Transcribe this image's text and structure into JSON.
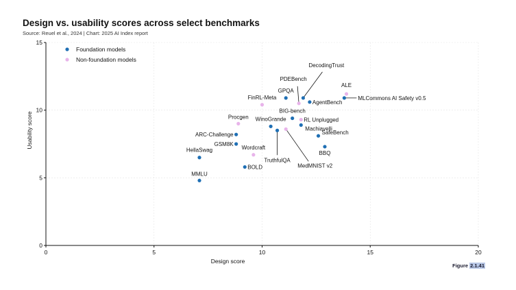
{
  "header": {
    "title": "Design vs. usability scores across select benchmarks",
    "source": "Source: Reuel et al., 2024 | Chart: 2025 AI Index report"
  },
  "figure": {
    "prefix": "Figure ",
    "number": "2.1.41"
  },
  "colors": {
    "foundation": "#1f6fb4",
    "non_foundation": "#e8b4ea",
    "grid": "#e4e4e4",
    "axis": "#111111"
  },
  "chart_data": {
    "type": "scatter",
    "title": "Design vs. usability scores across select benchmarks",
    "xlabel": "Design score",
    "ylabel": "Usability score",
    "xlim": [
      0,
      20
    ],
    "ylim": [
      0,
      15
    ],
    "xticks": [
      0,
      5,
      10,
      15,
      20
    ],
    "yticks": [
      0,
      5,
      10,
      15
    ],
    "grid": true,
    "legend_position": "top-left",
    "series": [
      {
        "name": "Foundation models",
        "points": [
          {
            "label": "MMLU",
            "x": 7.1,
            "y": 4.8
          },
          {
            "label": "HellaSwag",
            "x": 7.1,
            "y": 6.5
          },
          {
            "label": "BOLD",
            "x": 9.2,
            "y": 5.8
          },
          {
            "label": "GSM8K",
            "x": 8.8,
            "y": 7.5
          },
          {
            "label": "ARC-Challenge",
            "x": 8.8,
            "y": 8.2
          },
          {
            "label": "WinoGrande",
            "x": 10.4,
            "y": 8.8
          },
          {
            "label": "TruthfulQA",
            "x": 10.7,
            "y": 8.5
          },
          {
            "label": "BIG-bench",
            "x": 11.4,
            "y": 9.4
          },
          {
            "label": "Machiavelli",
            "x": 11.8,
            "y": 8.9
          },
          {
            "label": "GPQA",
            "x": 11.1,
            "y": 10.9
          },
          {
            "label": "DecodingTrust",
            "x": 11.9,
            "y": 10.9
          },
          {
            "label": "AgentBench",
            "x": 12.2,
            "y": 10.6
          },
          {
            "label": "SafeBench",
            "x": 12.6,
            "y": 8.1
          },
          {
            "label": "BBQ",
            "x": 12.9,
            "y": 7.3
          },
          {
            "label": "MLCommons AI Safety v0.5",
            "x": 13.8,
            "y": 10.9
          }
        ]
      },
      {
        "name": "Non-foundation models",
        "points": [
          {
            "label": "Wordcraft",
            "x": 9.6,
            "y": 6.7
          },
          {
            "label": "Procgen",
            "x": 8.9,
            "y": 9.0
          },
          {
            "label": "FinRL-Meta",
            "x": 10.0,
            "y": 10.4
          },
          {
            "label": "RL Unplugged",
            "x": 11.8,
            "y": 9.3
          },
          {
            "label": "MedMNIST v2",
            "x": 11.1,
            "y": 8.6
          },
          {
            "label": "PDEBench",
            "x": 11.7,
            "y": 10.5
          },
          {
            "label": "ALE",
            "x": 13.9,
            "y": 11.2
          }
        ]
      }
    ]
  }
}
